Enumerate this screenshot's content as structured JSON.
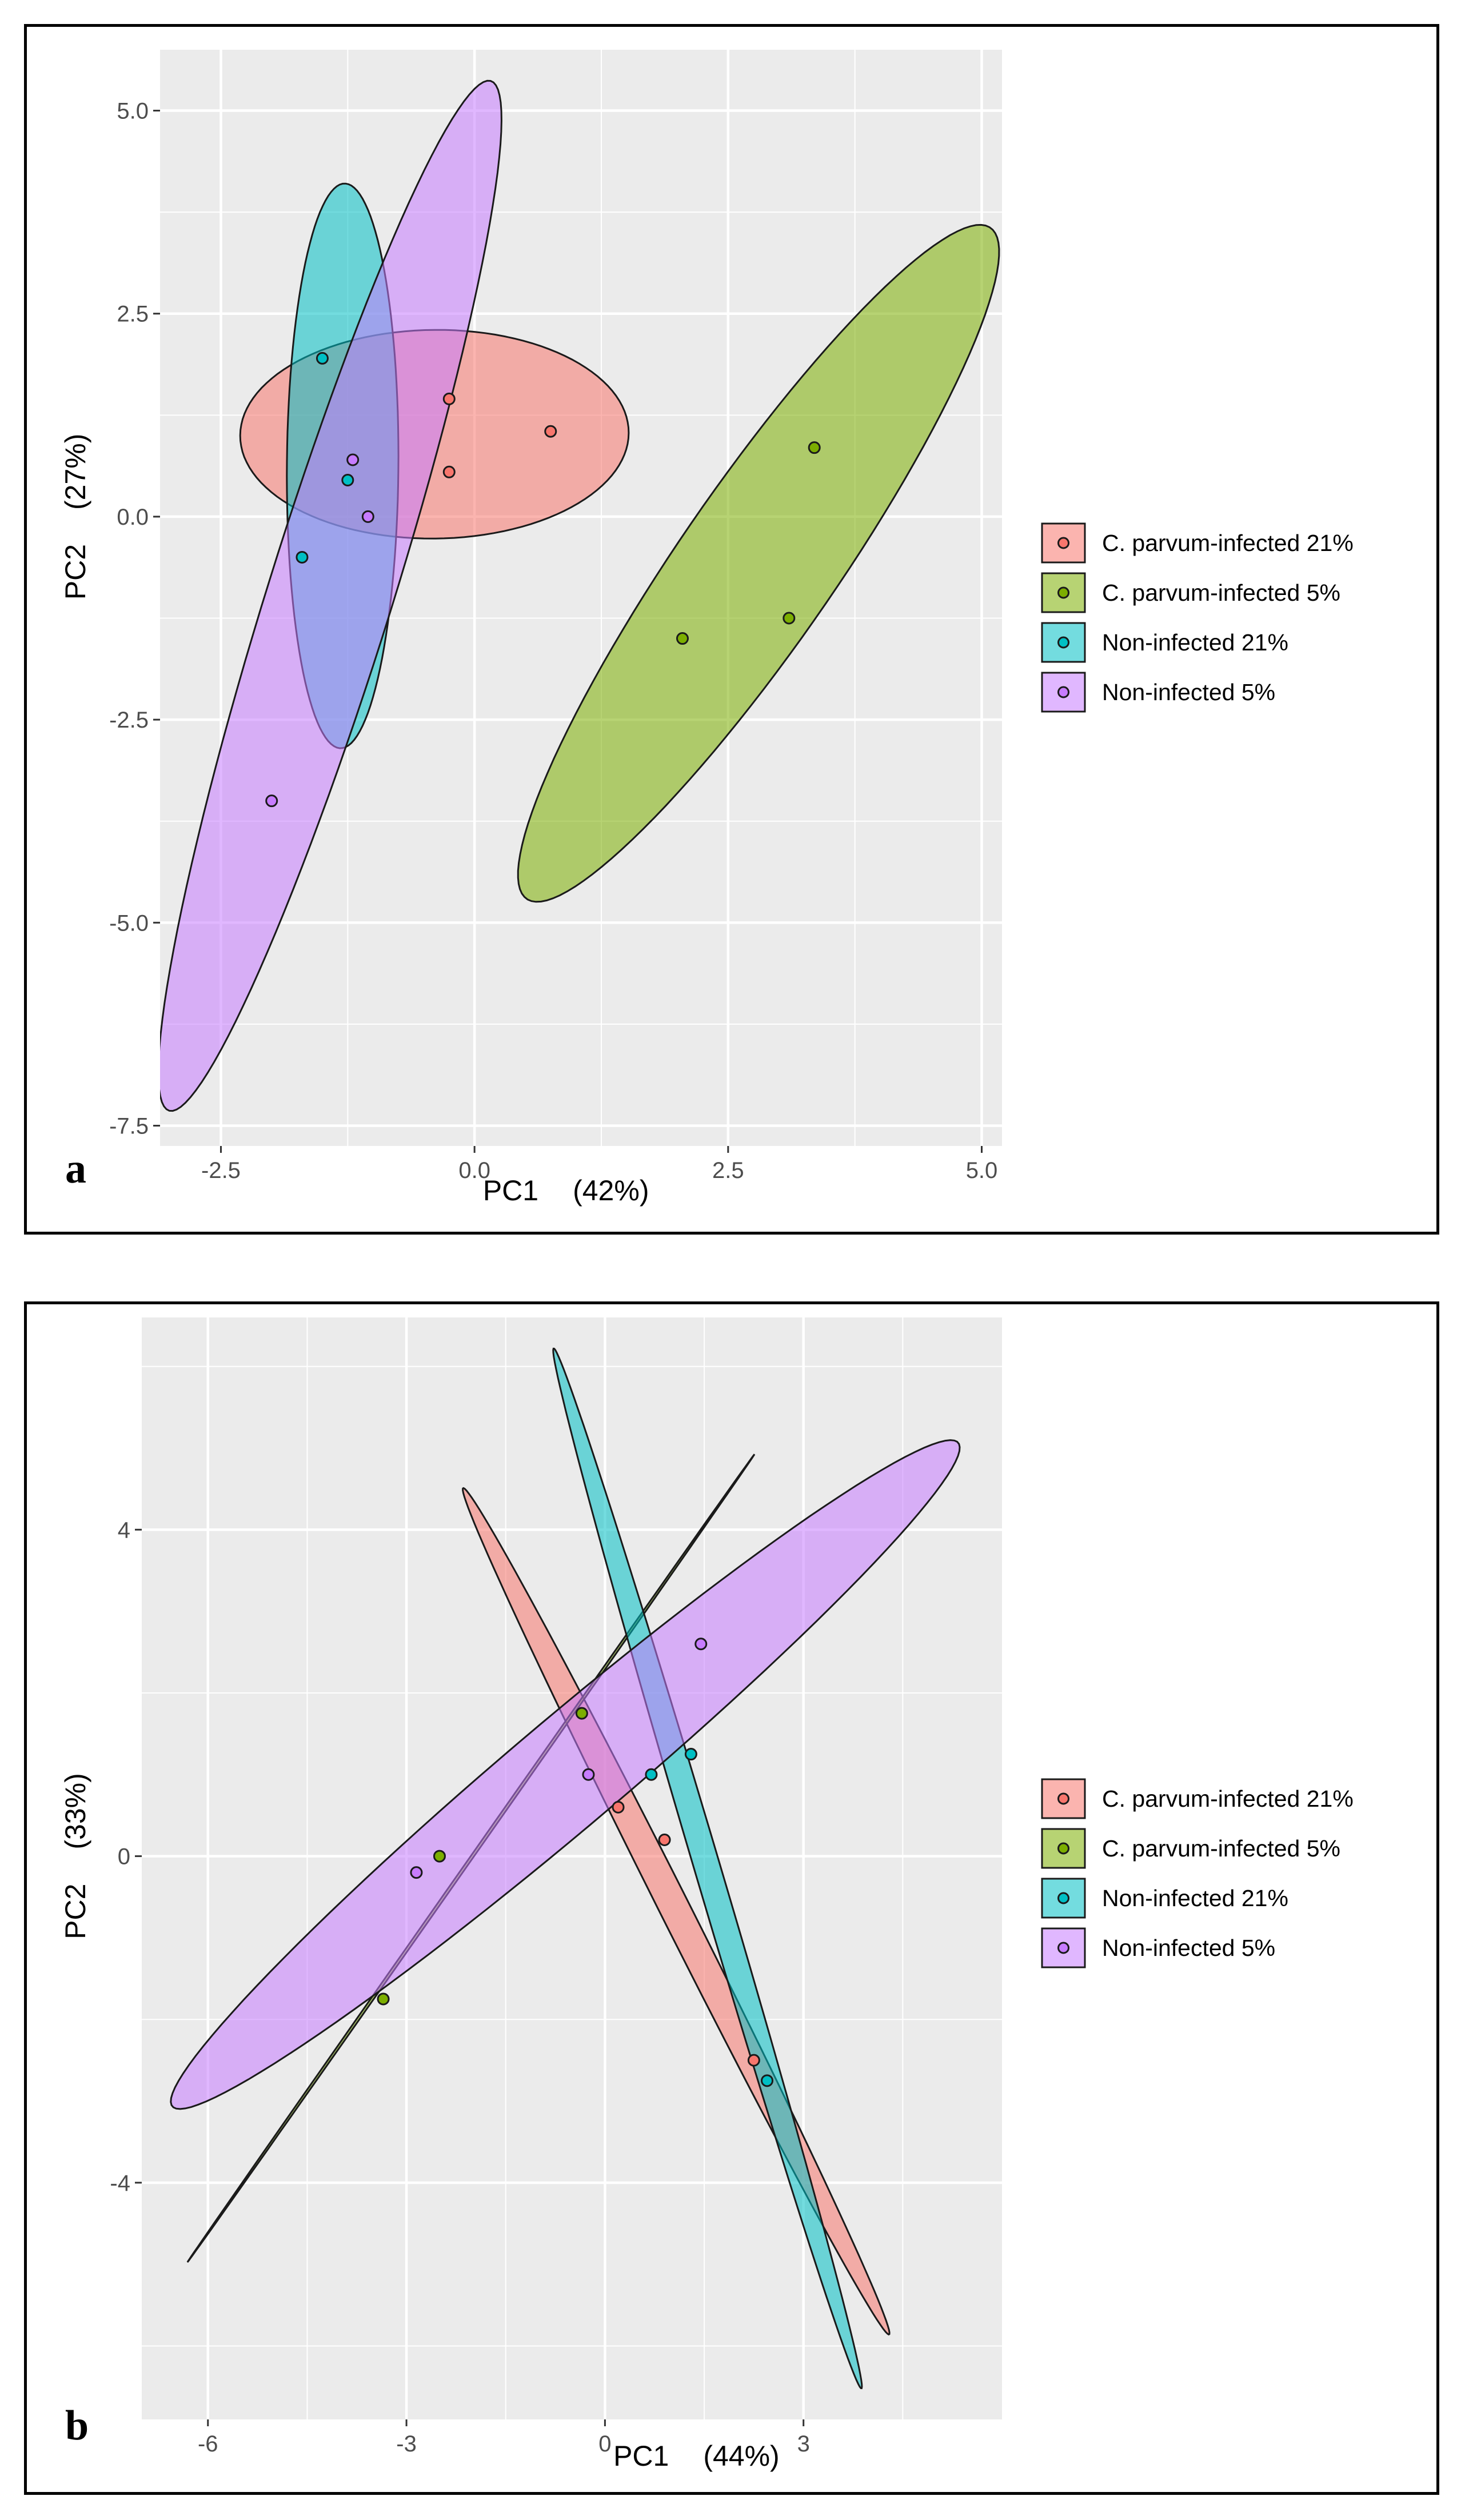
{
  "colors": {
    "panel_bg": "#EBEBEB",
    "grid": "#FFFFFF",
    "groups": [
      "#F8766D",
      "#7CAE00",
      "#00BFC4",
      "#C77CFF"
    ]
  },
  "legend": {
    "items": [
      {
        "label": "C. parvum-infected 21%",
        "color": "#F8766D"
      },
      {
        "label": "C. parvum-infected 5%",
        "color": "#7CAE00"
      },
      {
        "label": "Non-infected 21%",
        "color": "#00BFC4"
      },
      {
        "label": "Non-infected 5%",
        "color": "#C77CFF"
      }
    ]
  },
  "chart_data": [
    {
      "type": "scatter",
      "panel_label": "a",
      "xlabel": "PC1",
      "xlabel_pct": "(42%)",
      "ylabel": "PC2",
      "ylabel_pct": "(27%)",
      "xlim": [
        -3.1,
        5.2
      ],
      "ylim": [
        -7.75,
        5.75
      ],
      "xticks": [
        -2.5,
        0.0,
        2.5,
        5.0
      ],
      "xtick_labels": [
        "-2.5",
        "0.0",
        "2.5",
        "5.0"
      ],
      "yticks": [
        -7.5,
        -5.0,
        -2.5,
        0.0,
        2.5,
        5.0
      ],
      "ytick_labels": [
        "-7.5",
        "-5.0",
        "-2.5",
        "0.0",
        "2.5",
        "5.0"
      ],
      "grid": true,
      "legend_position": "right",
      "series": [
        {
          "name": "C. parvum-infected 21%",
          "color": "#F8766D",
          "points": [
            [
              -0.25,
              1.45
            ],
            [
              0.75,
              1.05
            ],
            [
              -0.25,
              0.55
            ]
          ],
          "ellipse": [
            [
              -0.39,
              2.3
            ],
            [
              1.52,
              1.03
            ],
            [
              -0.4,
              -0.27
            ],
            [
              -1.55,
              1.05
            ]
          ]
        },
        {
          "name": "C. parvum-infected 5%",
          "color": "#7CAE00",
          "points": [
            [
              3.35,
              0.85
            ],
            [
              3.1,
              -1.25
            ],
            [
              2.05,
              -1.5
            ]
          ],
          "ellipse": [
            [
              4.15,
              2.95
            ],
            [
              4.75,
              1.65
            ],
            [
              1.45,
              -4.1
            ],
            [
              -0.95,
              -3.35
            ]
          ]
        },
        {
          "name": "Non-infected 21%",
          "color": "#00BFC4",
          "points": [
            [
              -1.5,
              1.95
            ],
            [
              -1.25,
              0.45
            ],
            [
              -1.7,
              -0.5
            ]
          ],
          "ellipse": [
            [
              -1.3,
              4.1
            ],
            [
              -0.75,
              0.75
            ],
            [
              -1.3,
              -2.85
            ],
            [
              -1.1,
              0.75
            ]
          ]
        },
        {
          "name": "Non-infected 5%",
          "color": "#C77CFF",
          "points": [
            [
              -1.2,
              0.7
            ],
            [
              -1.05,
              0.0
            ],
            [
              -2.0,
              -3.5
            ]
          ],
          "ellipse": [
            [
              -0.05,
              5.2
            ],
            [
              -0.44,
              0.48
            ],
            [
              -2.8,
              -7.15
            ],
            [
              -0.2,
              0.5
            ]
          ]
        }
      ]
    },
    {
      "type": "scatter",
      "panel_label": "b",
      "xlabel": "PC1",
      "xlabel_pct": "(44%)",
      "ylabel": "PC2",
      "ylabel_pct": "(33%)",
      "xlim": [
        -7.0,
        6.0
      ],
      "ylim": [
        -6.9,
        6.6
      ],
      "xticks": [
        -6,
        -3,
        0,
        3
      ],
      "xtick_labels": [
        "-6",
        "-3",
        "0",
        "3"
      ],
      "yticks": [
        -4,
        0,
        4
      ],
      "ytick_labels": [
        "-4",
        "0",
        "4"
      ],
      "grid": true,
      "legend_position": "right",
      "series": [
        {
          "name": "C. parvum-infected 21%",
          "color": "#F8766D",
          "points": [
            [
              0.2,
              0.6
            ],
            [
              0.9,
              0.2
            ],
            [
              2.25,
              -2.5
            ]
          ],
          "ellipse": [
            [
              -1.75,
              4.05
            ],
            [
              -0.48,
              1.46
            ],
            [
              3.9,
              -5.4
            ],
            [
              1.25,
              -0.55
            ]
          ]
        },
        {
          "name": "C. parvum-infected 5%",
          "color": "#7CAE00",
          "points": [
            [
              -0.35,
              1.75
            ],
            [
              -2.5,
              0.0
            ],
            [
              -3.35,
              -1.75
            ]
          ],
          "ellipse": [
            [
              2.2,
              4.85
            ],
            [
              -1.31,
              0.83
            ],
            [
              -6.25,
              -4.9
            ],
            [
              -1.36,
              -0.5
            ]
          ]
        },
        {
          "name": "Non-infected 21%",
          "color": "#00BFC4",
          "points": [
            [
              1.3,
              1.25
            ],
            [
              0.7,
              1.0
            ],
            [
              2.45,
              -2.75
            ]
          ],
          "ellipse": [
            [
              -0.75,
              6.2
            ],
            [
              1.16,
              0.36
            ],
            [
              3.85,
              -6.5
            ],
            [
              0.97,
              -1.12
            ]
          ]
        },
        {
          "name": "Non-infected 5%",
          "color": "#C77CFF",
          "points": [
            [
              1.45,
              2.6
            ],
            [
              -0.25,
              1.0
            ],
            [
              -2.85,
              -0.2
            ]
          ],
          "ellipse": [
            [
              5.35,
              5.05
            ],
            [
              -0.23,
              0.38
            ],
            [
              -6.55,
              -3.05
            ],
            [
              -0.73,
              1.27
            ]
          ]
        }
      ]
    }
  ]
}
